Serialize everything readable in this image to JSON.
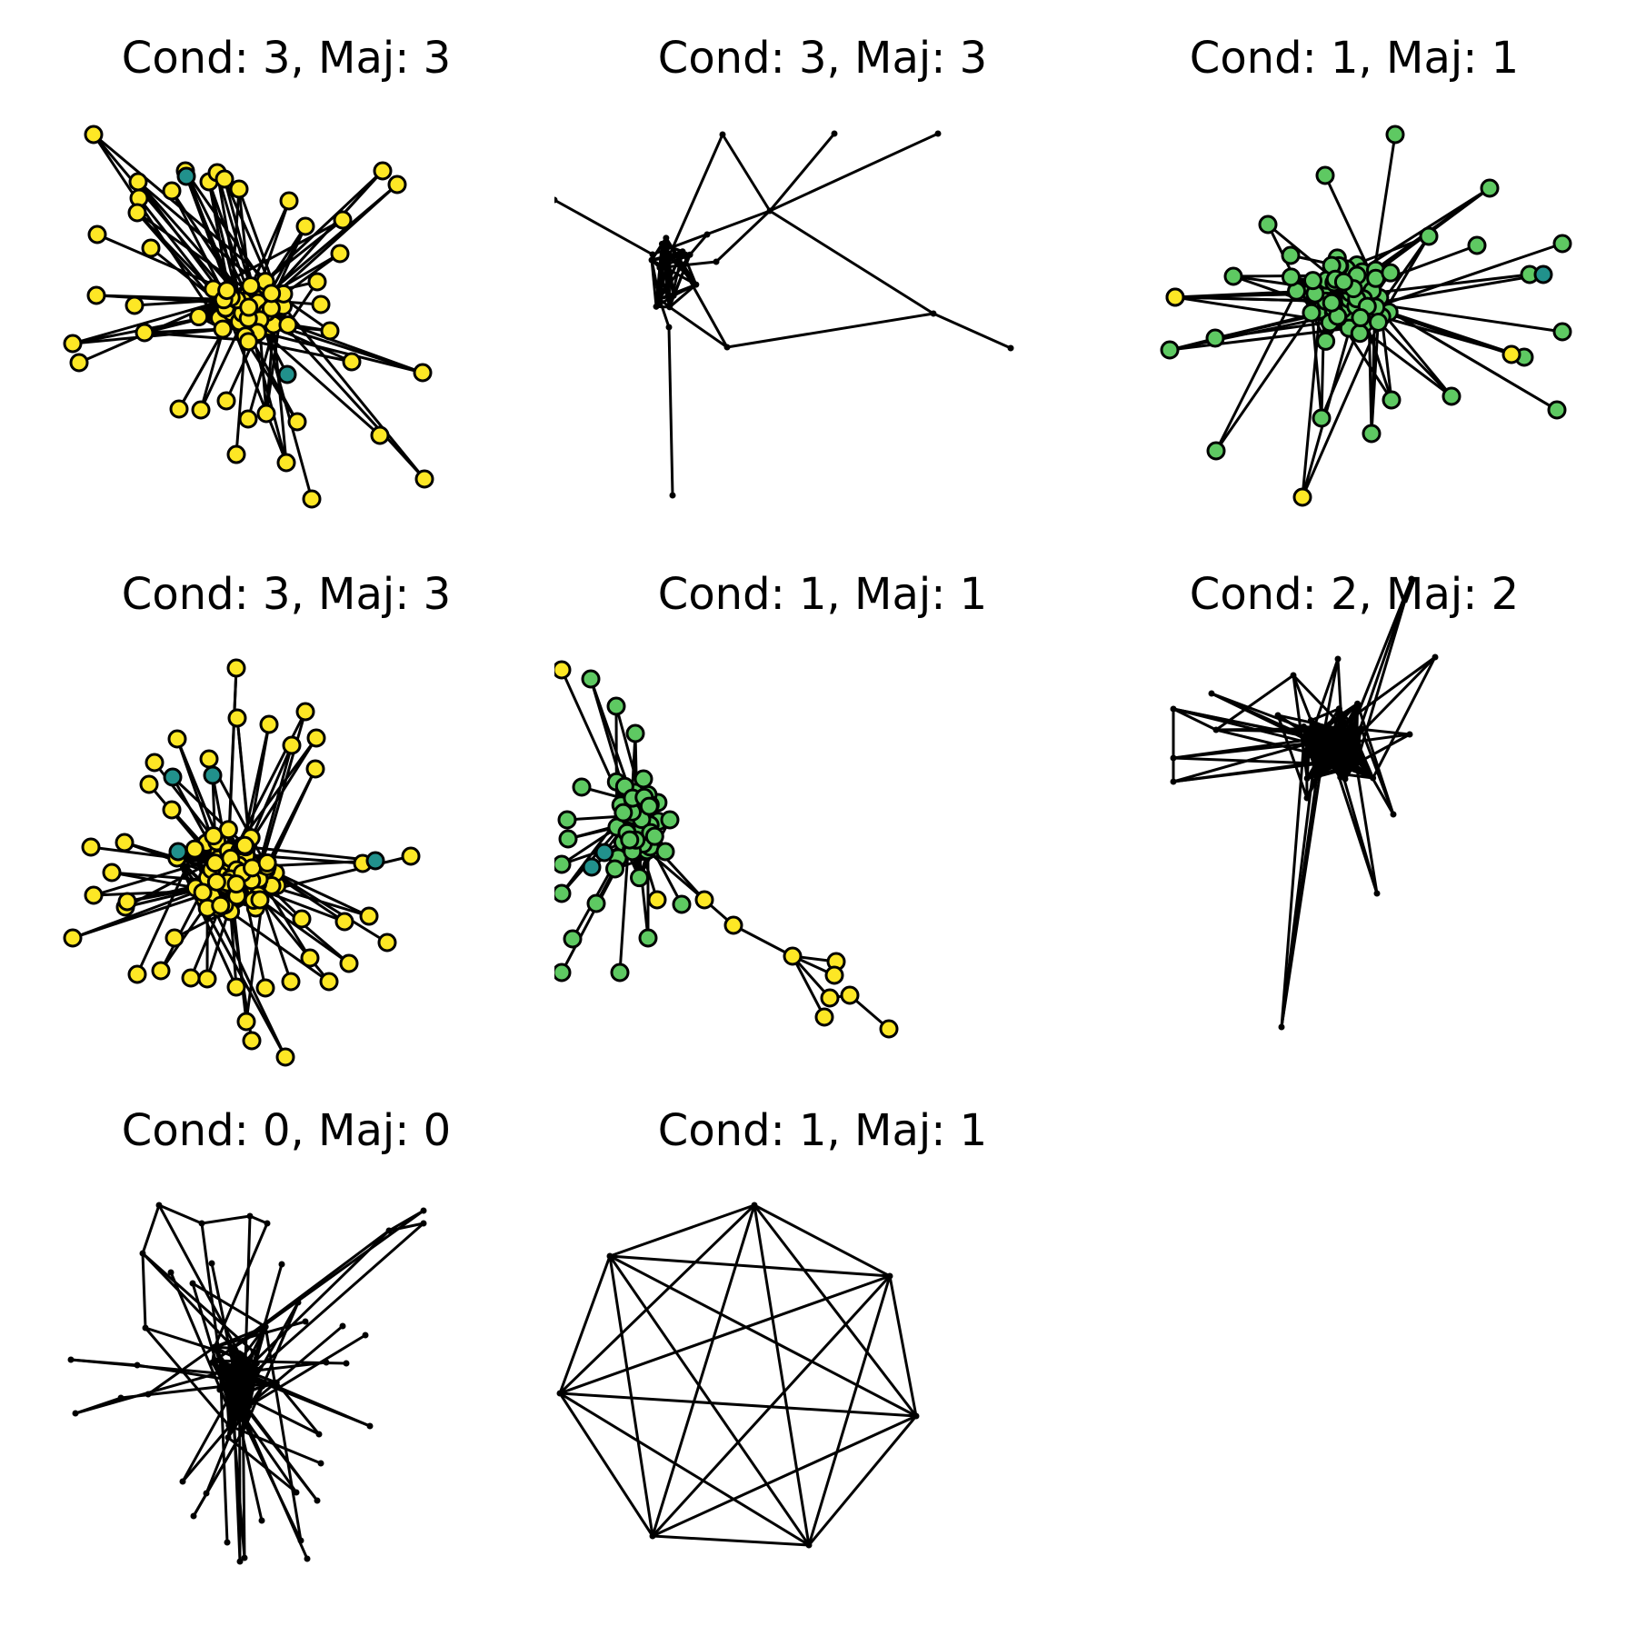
{
  "figure": {
    "panels": [
      {
        "title": "Cond: 3, Maj: 3",
        "style": "colored",
        "colors": {
          "majority": "#fde725",
          "minority": "#21918c"
        }
      },
      {
        "title": "Cond: 3, Maj: 3",
        "style": "plain"
      },
      {
        "title": "Cond: 1, Maj: 1",
        "style": "colored",
        "colors": {
          "majority": "#5ec962",
          "minority": "#21918c",
          "other": "#fde725"
        }
      },
      {
        "title": "Cond: 3, Maj: 3",
        "style": "colored",
        "colors": {
          "majority": "#fde725",
          "minority": "#21918c"
        }
      },
      {
        "title": "Cond: 1, Maj: 1",
        "style": "colored",
        "colors": {
          "majority": "#5ec962",
          "minority": "#21918c",
          "other": "#fde725"
        }
      },
      {
        "title": "Cond: 2, Maj: 2",
        "style": "plain"
      },
      {
        "title": "Cond: 0, Maj: 0",
        "style": "plain"
      },
      {
        "title": "Cond: 1, Maj: 1",
        "style": "plain"
      }
    ]
  }
}
